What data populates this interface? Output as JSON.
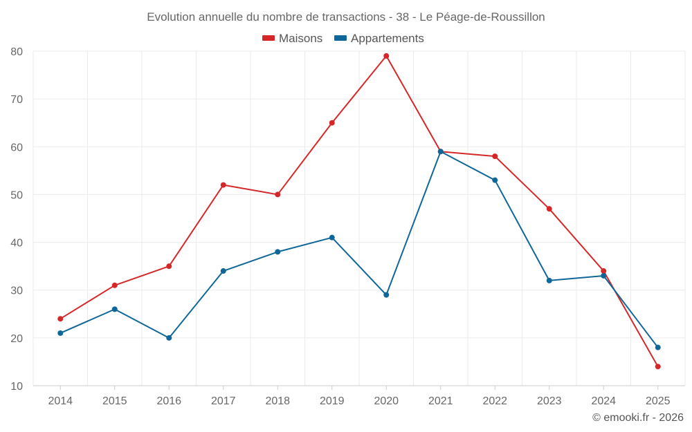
{
  "chart_data": {
    "type": "line",
    "title": "Evolution annuelle du nombre de transactions - 38 - Le Péage-de-Roussillon",
    "categories": [
      "2014",
      "2015",
      "2016",
      "2017",
      "2018",
      "2019",
      "2020",
      "2021",
      "2022",
      "2023",
      "2024",
      "2025"
    ],
    "series": [
      {
        "name": "Maisons",
        "color": "#d62728",
        "values": [
          24,
          31,
          35,
          52,
          50,
          65,
          79,
          59,
          58,
          47,
          34,
          14
        ]
      },
      {
        "name": "Appartements",
        "color": "#0e6699",
        "values": [
          21,
          26,
          20,
          34,
          38,
          41,
          29,
          59,
          53,
          32,
          33,
          18
        ]
      }
    ],
    "ylim": [
      10,
      80
    ],
    "yticks": [
      10,
      20,
      30,
      40,
      50,
      60,
      70,
      80
    ],
    "xlabel": "",
    "ylabel": "",
    "grid": true,
    "legend_position": "top-center"
  },
  "credit": "© emooki.fr - 2026"
}
